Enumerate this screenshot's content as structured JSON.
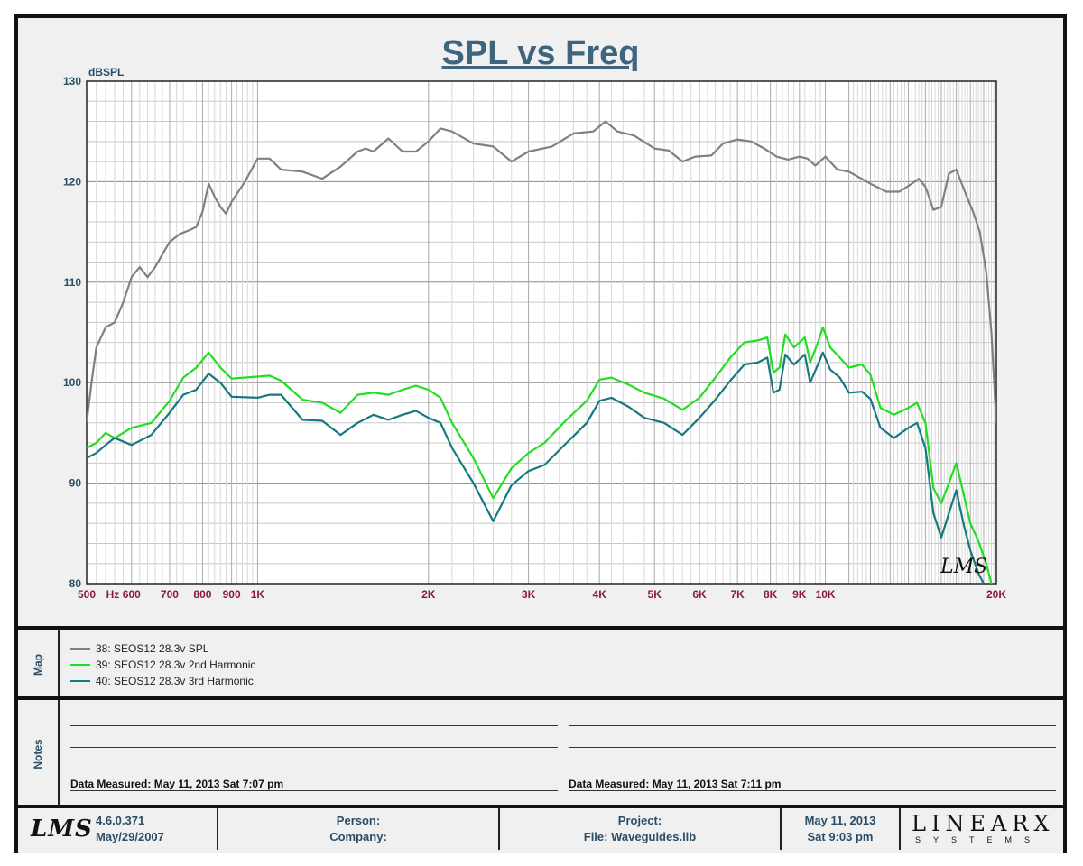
{
  "title": "SPL vs Freq",
  "chart_data": {
    "type": "line",
    "title": "SPL vs Freq",
    "xlabel": "",
    "ylabel": "dBSPL",
    "x_scale": "log",
    "xlim": [
      500,
      20000
    ],
    "ylim": [
      80,
      130
    ],
    "grid": true,
    "x_ticks": [
      {
        "value": 500,
        "label": "500"
      },
      {
        "value": 600,
        "label": "600"
      },
      {
        "value": 700,
        "label": "700"
      },
      {
        "value": 800,
        "label": "800"
      },
      {
        "value": 900,
        "label": "900"
      },
      {
        "value": 1000,
        "label": "1K"
      },
      {
        "value": 2000,
        "label": "2K"
      },
      {
        "value": 3000,
        "label": "3K"
      },
      {
        "value": 4000,
        "label": "4K"
      },
      {
        "value": 5000,
        "label": "5K"
      },
      {
        "value": 6000,
        "label": "6K"
      },
      {
        "value": 7000,
        "label": "7K"
      },
      {
        "value": 8000,
        "label": "8K"
      },
      {
        "value": 9000,
        "label": "9K"
      },
      {
        "value": 10000,
        "label": "10K"
      },
      {
        "value": 20000,
        "label": "20K"
      }
    ],
    "x_unit_label": "Hz",
    "y_ticks": [
      80,
      90,
      100,
      110,
      120,
      130
    ],
    "watermark": "LMS",
    "series": [
      {
        "name": "38: SEOS12 28.3v SPL",
        "color": "#808080",
        "points": [
          [
            500,
            96
          ],
          [
            510,
            100
          ],
          [
            520,
            103.5
          ],
          [
            540,
            105.5
          ],
          [
            560,
            106
          ],
          [
            580,
            108
          ],
          [
            600,
            110.5
          ],
          [
            620,
            111.5
          ],
          [
            640,
            110.5
          ],
          [
            660,
            111.5
          ],
          [
            700,
            114
          ],
          [
            730,
            114.8
          ],
          [
            760,
            115.2
          ],
          [
            780,
            115.5
          ],
          [
            800,
            117
          ],
          [
            820,
            119.8
          ],
          [
            840,
            118.5
          ],
          [
            860,
            117.5
          ],
          [
            880,
            116.8
          ],
          [
            900,
            118
          ],
          [
            950,
            120
          ],
          [
            1000,
            122.3
          ],
          [
            1050,
            122.3
          ],
          [
            1100,
            121.2
          ],
          [
            1200,
            121
          ],
          [
            1300,
            120.3
          ],
          [
            1400,
            121.5
          ],
          [
            1500,
            123
          ],
          [
            1550,
            123.3
          ],
          [
            1600,
            123
          ],
          [
            1700,
            124.3
          ],
          [
            1800,
            123
          ],
          [
            1900,
            123
          ],
          [
            2000,
            124
          ],
          [
            2100,
            125.3
          ],
          [
            2200,
            125
          ],
          [
            2400,
            123.8
          ],
          [
            2600,
            123.5
          ],
          [
            2800,
            122
          ],
          [
            3000,
            123
          ],
          [
            3300,
            123.5
          ],
          [
            3600,
            124.8
          ],
          [
            3900,
            125
          ],
          [
            4100,
            126
          ],
          [
            4300,
            125
          ],
          [
            4600,
            124.6
          ],
          [
            5000,
            123.3
          ],
          [
            5300,
            123.1
          ],
          [
            5600,
            122
          ],
          [
            5900,
            122.5
          ],
          [
            6300,
            122.6
          ],
          [
            6600,
            123.8
          ],
          [
            7000,
            124.2
          ],
          [
            7400,
            124
          ],
          [
            7800,
            123.3
          ],
          [
            8200,
            122.5
          ],
          [
            8600,
            122.2
          ],
          [
            9000,
            122.5
          ],
          [
            9300,
            122.3
          ],
          [
            9600,
            121.6
          ],
          [
            10000,
            122.5
          ],
          [
            10500,
            121.2
          ],
          [
            11000,
            121
          ],
          [
            12000,
            119.8
          ],
          [
            12800,
            119
          ],
          [
            13500,
            119
          ],
          [
            14200,
            119.8
          ],
          [
            14600,
            120.3
          ],
          [
            15000,
            119.5
          ],
          [
            15500,
            117.2
          ],
          [
            16000,
            117.5
          ],
          [
            16500,
            120.8
          ],
          [
            17000,
            121.2
          ],
          [
            17600,
            119
          ],
          [
            18200,
            117
          ],
          [
            18700,
            115
          ],
          [
            19200,
            111
          ],
          [
            19600,
            105
          ],
          [
            20000,
            96
          ]
        ]
      },
      {
        "name": "39: SEOS12 28.3v 2nd Harmonic",
        "color": "#22dd22",
        "points": [
          [
            500,
            93.5
          ],
          [
            520,
            94
          ],
          [
            540,
            95
          ],
          [
            560,
            94.5
          ],
          [
            600,
            95.5
          ],
          [
            650,
            96
          ],
          [
            700,
            98.2
          ],
          [
            740,
            100.5
          ],
          [
            780,
            101.5
          ],
          [
            820,
            103
          ],
          [
            860,
            101.5
          ],
          [
            900,
            100.4
          ],
          [
            1000,
            100.6
          ],
          [
            1050,
            100.7
          ],
          [
            1100,
            100.2
          ],
          [
            1200,
            98.3
          ],
          [
            1300,
            98
          ],
          [
            1400,
            97
          ],
          [
            1500,
            98.8
          ],
          [
            1600,
            99
          ],
          [
            1700,
            98.8
          ],
          [
            1800,
            99.3
          ],
          [
            1900,
            99.7
          ],
          [
            2000,
            99.3
          ],
          [
            2100,
            98.5
          ],
          [
            2200,
            96
          ],
          [
            2400,
            92.5
          ],
          [
            2600,
            88.5
          ],
          [
            2800,
            91.5
          ],
          [
            3000,
            93
          ],
          [
            3200,
            94
          ],
          [
            3500,
            96.3
          ],
          [
            3800,
            98.2
          ],
          [
            4000,
            100.3
          ],
          [
            4200,
            100.5
          ],
          [
            4500,
            99.8
          ],
          [
            4800,
            99
          ],
          [
            5200,
            98.4
          ],
          [
            5600,
            97.3
          ],
          [
            6000,
            98.5
          ],
          [
            6400,
            100.5
          ],
          [
            6800,
            102.5
          ],
          [
            7200,
            104
          ],
          [
            7600,
            104.2
          ],
          [
            7900,
            104.5
          ],
          [
            8100,
            101
          ],
          [
            8300,
            101.5
          ],
          [
            8500,
            104.8
          ],
          [
            8800,
            103.5
          ],
          [
            9200,
            104.5
          ],
          [
            9400,
            102
          ],
          [
            9700,
            104
          ],
          [
            9900,
            105.5
          ],
          [
            10200,
            103.5
          ],
          [
            10600,
            102.5
          ],
          [
            11000,
            101.5
          ],
          [
            11600,
            101.8
          ],
          [
            12000,
            100.8
          ],
          [
            12500,
            97.5
          ],
          [
            13200,
            96.8
          ],
          [
            14000,
            97.5
          ],
          [
            14500,
            98
          ],
          [
            15000,
            96
          ],
          [
            15500,
            89.5
          ],
          [
            16000,
            88
          ],
          [
            16500,
            90
          ],
          [
            17000,
            92
          ],
          [
            17500,
            89
          ],
          [
            18000,
            86
          ],
          [
            18600,
            84.2
          ],
          [
            19200,
            82
          ],
          [
            19600,
            80
          ]
        ]
      },
      {
        "name": "40: SEOS12 28.3v 3rd Harmonic",
        "color": "#157a80",
        "points": [
          [
            500,
            92.5
          ],
          [
            520,
            93
          ],
          [
            540,
            93.8
          ],
          [
            560,
            94.5
          ],
          [
            600,
            93.8
          ],
          [
            650,
            94.8
          ],
          [
            700,
            97
          ],
          [
            740,
            98.8
          ],
          [
            780,
            99.3
          ],
          [
            820,
            100.9
          ],
          [
            860,
            100
          ],
          [
            900,
            98.6
          ],
          [
            1000,
            98.5
          ],
          [
            1050,
            98.8
          ],
          [
            1100,
            98.8
          ],
          [
            1200,
            96.3
          ],
          [
            1300,
            96.2
          ],
          [
            1400,
            94.8
          ],
          [
            1500,
            96
          ],
          [
            1600,
            96.8
          ],
          [
            1700,
            96.3
          ],
          [
            1800,
            96.8
          ],
          [
            1900,
            97.2
          ],
          [
            2000,
            96.5
          ],
          [
            2100,
            96
          ],
          [
            2200,
            93.5
          ],
          [
            2400,
            90
          ],
          [
            2600,
            86.2
          ],
          [
            2800,
            89.8
          ],
          [
            3000,
            91.2
          ],
          [
            3200,
            91.8
          ],
          [
            3500,
            94
          ],
          [
            3800,
            96
          ],
          [
            4000,
            98.2
          ],
          [
            4200,
            98.5
          ],
          [
            4500,
            97.6
          ],
          [
            4800,
            96.5
          ],
          [
            5200,
            96
          ],
          [
            5600,
            94.8
          ],
          [
            6000,
            96.5
          ],
          [
            6400,
            98.3
          ],
          [
            6800,
            100.2
          ],
          [
            7200,
            101.8
          ],
          [
            7600,
            102
          ],
          [
            7900,
            102.5
          ],
          [
            8100,
            99
          ],
          [
            8300,
            99.3
          ],
          [
            8500,
            102.8
          ],
          [
            8800,
            101.8
          ],
          [
            9200,
            102.8
          ],
          [
            9400,
            100
          ],
          [
            9700,
            101.8
          ],
          [
            9900,
            103
          ],
          [
            10200,
            101.3
          ],
          [
            10600,
            100.5
          ],
          [
            11000,
            99
          ],
          [
            11600,
            99.1
          ],
          [
            12000,
            98.4
          ],
          [
            12500,
            95.5
          ],
          [
            13200,
            94.5
          ],
          [
            14000,
            95.5
          ],
          [
            14500,
            96
          ],
          [
            15000,
            93.5
          ],
          [
            15500,
            87
          ],
          [
            16000,
            84.6
          ],
          [
            16500,
            87
          ],
          [
            17000,
            89.3
          ],
          [
            17500,
            86
          ],
          [
            18000,
            83.3
          ],
          [
            18600,
            81
          ],
          [
            19000,
            80
          ]
        ]
      }
    ]
  },
  "map": {
    "label": "Map",
    "entries": [
      {
        "text": "38: SEOS12 28.3v SPL",
        "color": "#808080"
      },
      {
        "text": "39: SEOS12 28.3v 2nd Harmonic",
        "color": "#22dd22"
      },
      {
        "text": "40: SEOS12 28.3v 3rd Harmonic",
        "color": "#157a80"
      }
    ]
  },
  "notes": {
    "label": "Notes",
    "left_measured": "Data Measured: May 11, 2013  Sat  7:07 pm",
    "right_measured": "Data Measured: May 11, 2013  Sat  7:11 pm"
  },
  "footer": {
    "logo": "LMS",
    "version": "4.6.0.371",
    "version_date": "May/29/2007",
    "person": "Person:",
    "company": "Company:",
    "project": "Project:",
    "file": "File: Waveguides.lib",
    "date": "May 11, 2013",
    "time": "Sat  9:03 pm",
    "brand": "LINEARX",
    "brand_sub": "SYSTEMS"
  }
}
